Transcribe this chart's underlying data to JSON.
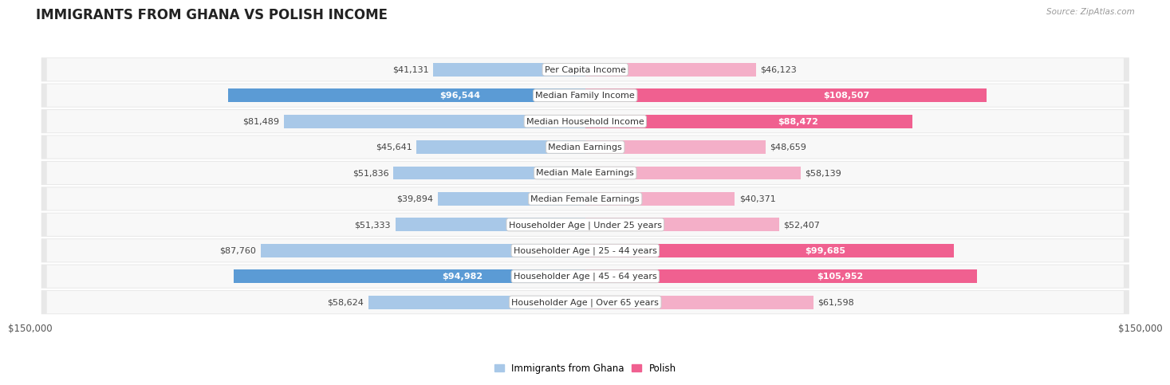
{
  "title": "IMMIGRANTS FROM GHANA VS POLISH INCOME",
  "source": "Source: ZipAtlas.com",
  "categories": [
    "Per Capita Income",
    "Median Family Income",
    "Median Household Income",
    "Median Earnings",
    "Median Male Earnings",
    "Median Female Earnings",
    "Householder Age | Under 25 years",
    "Householder Age | 25 - 44 years",
    "Householder Age | 45 - 64 years",
    "Householder Age | Over 65 years"
  ],
  "ghana_values": [
    41131,
    96544,
    81489,
    45641,
    51836,
    39894,
    51333,
    87760,
    94982,
    58624
  ],
  "polish_values": [
    46123,
    108507,
    88472,
    48659,
    58139,
    40371,
    52407,
    99685,
    105952,
    61598
  ],
  "ghana_labels": [
    "$41,131",
    "$96,544",
    "$81,489",
    "$45,641",
    "$51,836",
    "$39,894",
    "$51,333",
    "$87,760",
    "$94,982",
    "$58,624"
  ],
  "polish_labels": [
    "$46,123",
    "$108,507",
    "$88,472",
    "$48,659",
    "$58,139",
    "$40,371",
    "$52,407",
    "$99,685",
    "$105,952",
    "$61,598"
  ],
  "ghana_label_inside": [
    false,
    true,
    false,
    false,
    false,
    false,
    false,
    false,
    true,
    false
  ],
  "polish_label_inside": [
    false,
    true,
    true,
    false,
    false,
    false,
    false,
    true,
    true,
    false
  ],
  "ghana_color_light": "#a8c8e8",
  "ghana_color_dark": "#5b9bd5",
  "polish_color_light": "#f4afc8",
  "polish_color_dark": "#f06090",
  "max_value": 150000,
  "background_color": "#ffffff",
  "row_bg_outer": "#e8e8e8",
  "row_bg_inner": "#f8f8f8",
  "title_fontsize": 12,
  "label_fontsize": 8,
  "category_fontsize": 8,
  "axis_label": "$150,000",
  "legend_ghana": "Immigrants from Ghana",
  "legend_polish": "Polish"
}
